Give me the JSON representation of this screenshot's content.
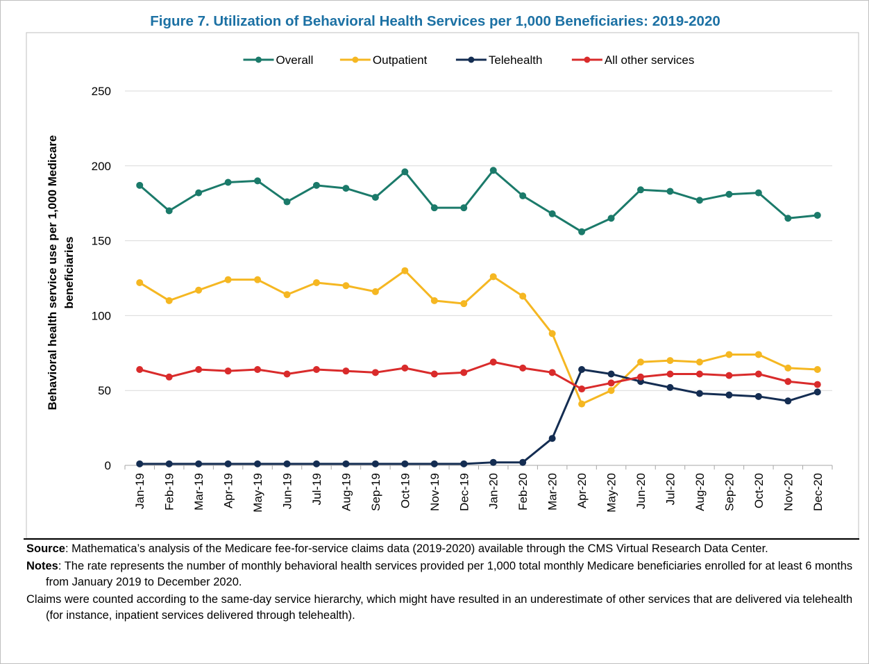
{
  "chart_data": {
    "type": "line",
    "title": "Figure 7. Utilization of Behavioral Health Services per 1,000 Beneficiaries: 2019-2020",
    "ylabel": [
      "Behavioral health service use per 1,000 Medicare",
      "beneficiaries"
    ],
    "categories": [
      "Jan-19",
      "Feb-19",
      "Mar-19",
      "Apr-19",
      "May-19",
      "Jun-19",
      "Jul-19",
      "Aug-19",
      "Sep-19",
      "Oct-19",
      "Nov-19",
      "Dec-19",
      "Jan-20",
      "Feb-20",
      "Mar-20",
      "Apr-20",
      "May-20",
      "Jun-20",
      "Jul-20",
      "Aug-20",
      "Sep-20",
      "Oct-20",
      "Nov-20",
      "Dec-20"
    ],
    "series": [
      {
        "name": "Overall",
        "color": "#1b7a6a",
        "values": [
          187,
          170,
          182,
          189,
          190,
          176,
          187,
          185,
          179,
          196,
          172,
          172,
          197,
          180,
          168,
          156,
          165,
          184,
          183,
          177,
          181,
          182,
          165,
          167
        ]
      },
      {
        "name": "Outpatient",
        "color": "#f5b722",
        "values": [
          122,
          110,
          117,
          124,
          124,
          114,
          122,
          120,
          116,
          130,
          110,
          108,
          126,
          113,
          88,
          41,
          50,
          69,
          70,
          69,
          74,
          74,
          65,
          64
        ]
      },
      {
        "name": "Telehealth",
        "color": "#142d52",
        "values": [
          1,
          1,
          1,
          1,
          1,
          1,
          1,
          1,
          1,
          1,
          1,
          1,
          2,
          2,
          18,
          64,
          61,
          56,
          52,
          48,
          47,
          46,
          43,
          49
        ]
      },
      {
        "name": "All other services",
        "color": "#d92b2b",
        "values": [
          64,
          59,
          64,
          63,
          64,
          61,
          64,
          63,
          62,
          65,
          61,
          62,
          69,
          65,
          62,
          51,
          55,
          59,
          61,
          61,
          60,
          61,
          56,
          54
        ]
      }
    ],
    "ylim": [
      0,
      250
    ],
    "yticks": [
      0,
      50,
      100,
      150,
      200,
      250
    ],
    "grid": true,
    "legend": "top"
  },
  "notes": [
    {
      "label": "Source",
      "text": ":  Mathematica’s analysis of the Medicare fee-for-service claims data (2019-2020) available through the CMS Virtual Research Data Center."
    },
    {
      "label": "Notes",
      "text": ":  The rate represents the number of monthly behavioral health services provided per 1,000 total monthly Medicare beneficiaries enrolled for at least 6 months from January 2019 to December 2020."
    },
    {
      "text": "Claims were counted according to the same-day service hierarchy, which might have resulted in an underestimate of other services that are delivered via telehealth (for instance, inpatient services delivered through telehealth)."
    }
  ]
}
